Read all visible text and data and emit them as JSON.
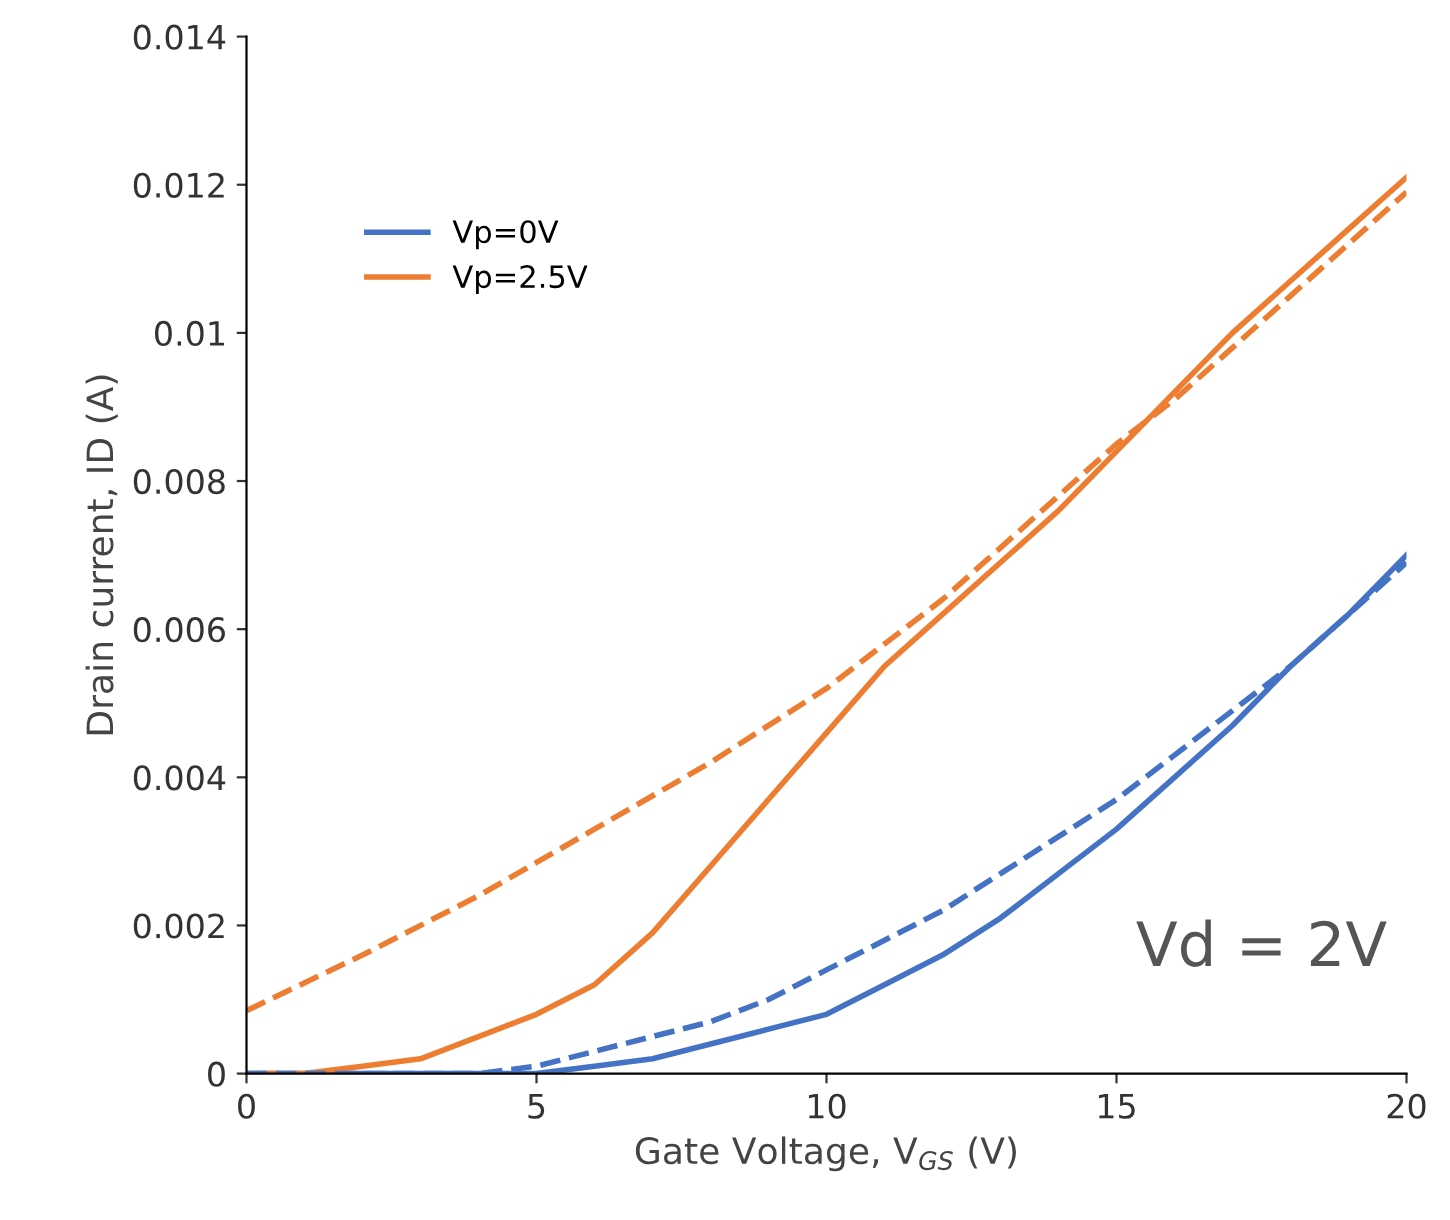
{
  "chart_data": {
    "type": "line",
    "xlabel": "Gate Voltage, V$_{GS}$ (V)",
    "ylabel": "Drain current, ID (A)",
    "xlim": [
      0,
      20
    ],
    "xticks": [
      0,
      5,
      10,
      15,
      20
    ],
    "ylim": [
      0,
      0.014
    ],
    "yticks": [
      0,
      0.002,
      0.004,
      0.006,
      0.008,
      0.01,
      0.012,
      0.014
    ],
    "grid": false,
    "legend": "top left",
    "marker": "none",
    "annotations": [
      "Vd = 2V"
    ],
    "series": [
      {
        "name": "Vp=0V",
        "color": "#4472c4",
        "line_style": "solid",
        "x": [
          0,
          4,
          5,
          6,
          7,
          8,
          9,
          10,
          11,
          12,
          13,
          14,
          15,
          16,
          17,
          18,
          19,
          20
        ],
        "values": [
          0,
          0,
          0,
          0.0001,
          0.0002,
          0.0004,
          0.0006,
          0.0008,
          0.0012,
          0.0016,
          0.0021,
          0.0027,
          0.0033,
          0.004,
          0.0047,
          0.0055,
          0.0062,
          0.007
        ]
      },
      {
        "name": "Vp=2.5V",
        "color": "#ed7d31",
        "line_style": "solid",
        "x": [
          0,
          1,
          2,
          3,
          4,
          5,
          6,
          7,
          8,
          9,
          10,
          11,
          12,
          13,
          14,
          15,
          16,
          17,
          18,
          19,
          20
        ],
        "values": [
          0,
          0,
          0.0001,
          0.0002,
          0.0005,
          0.0008,
          0.0012,
          0.0019,
          0.0028,
          0.0037,
          0.0046,
          0.0055,
          0.0062,
          0.0069,
          0.0076,
          0.0084,
          0.0092,
          0.01,
          0.0107,
          0.0114,
          0.0121
        ]
      },
      {
        "color": "#4472c4",
        "line_style": "dashed",
        "x": [
          0,
          3,
          4,
          5,
          6,
          7,
          8,
          9,
          10,
          11,
          12,
          13,
          14,
          15,
          16,
          17,
          18,
          19,
          20
        ],
        "values": [
          0,
          0,
          0,
          0.0001,
          0.0003,
          0.0005,
          0.0007,
          0.001,
          0.0014,
          0.0018,
          0.0022,
          0.0027,
          0.0032,
          0.0037,
          0.0043,
          0.0049,
          0.0055,
          0.0062,
          0.0069
        ]
      },
      {
        "color": "#ed7d31",
        "line_style": "dashed",
        "x": [
          0,
          2,
          4,
          6,
          8,
          10,
          12,
          14,
          15,
          16,
          18,
          20
        ],
        "values": [
          0.00085,
          0.0016,
          0.0024,
          0.0033,
          0.0042,
          0.0052,
          0.0064,
          0.0078,
          0.0085,
          0.0091,
          0.0105,
          0.0119
        ]
      }
    ]
  }
}
